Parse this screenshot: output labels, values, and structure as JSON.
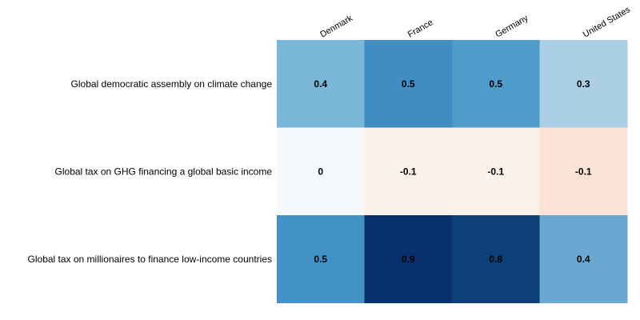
{
  "chart_data": {
    "type": "heatmap",
    "title": "",
    "xlabel": "",
    "ylabel": "",
    "columns": [
      "Denmark",
      "France",
      "Germany",
      "United States"
    ],
    "rows": [
      "Global democratic assembly on climate change",
      "Global tax on GHG financing a global basic income",
      "Global tax on millionaires  to finance low-income countries"
    ],
    "values": [
      [
        0.4,
        0.5,
        0.5,
        0.3
      ],
      [
        0,
        -0.1,
        -0.1,
        -0.1
      ],
      [
        0.5,
        0.9,
        0.8,
        0.4
      ]
    ],
    "cell_labels": [
      [
        "0.4",
        "0.5",
        "0.5",
        "0.3"
      ],
      [
        "0",
        "-0.1",
        "-0.1",
        "-0.1"
      ],
      [
        "0.5",
        "0.9",
        "0.8",
        "0.4"
      ]
    ],
    "cell_colors": [
      [
        "#7ab6d7",
        "#3f8dc3",
        "#4d9cc9",
        "#abcfe5"
      ],
      [
        "#f6f9fc",
        "#fdf1ec",
        "#fdf1ec",
        "#fde3d6"
      ],
      [
        "#4292c6",
        "#08306b",
        "#0e4078",
        "#69a8d1"
      ]
    ],
    "grid": false,
    "legend": "none"
  }
}
